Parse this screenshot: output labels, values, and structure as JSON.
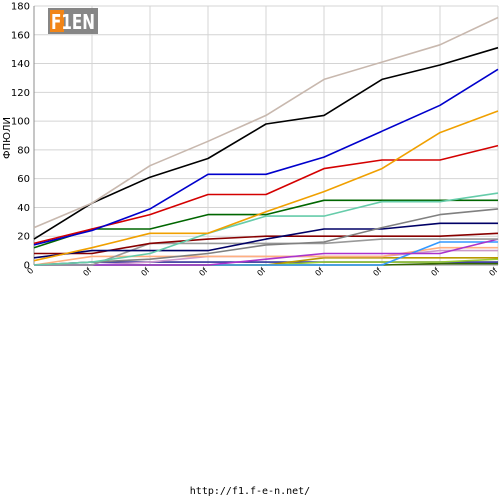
{
  "chart_data": {
    "type": "line",
    "title": "",
    "xlabel": "",
    "ylabel": "ФПЮЛИ",
    "ylim": [
      0,
      180
    ],
    "yticks": [
      0,
      20,
      40,
      60,
      80,
      100,
      120,
      140,
      160,
      180
    ],
    "categories": [
      "0",
      "0f",
      "0f",
      "0f",
      "0f",
      "0f",
      "0f",
      "0f",
      "0f"
    ],
    "grid": true,
    "legend": "none",
    "series": [
      {
        "color": "#c8b8ae",
        "values": [
          26,
          43,
          69,
          86,
          104,
          129,
          141,
          153,
          172
        ]
      },
      {
        "color": "#000000",
        "values": [
          18,
          43,
          61,
          74,
          98,
          104,
          129,
          139,
          151
        ]
      },
      {
        "color": "#0000cc",
        "values": [
          14,
          24,
          39,
          63,
          63,
          75,
          93,
          111,
          136
        ]
      },
      {
        "color": "#f0a000",
        "values": [
          3,
          12,
          22,
          22,
          37,
          51,
          67,
          92,
          107
        ]
      },
      {
        "color": "#d40000",
        "values": [
          15,
          25,
          35,
          49,
          49,
          67,
          73,
          73,
          83
        ]
      },
      {
        "color": "#66ccaa",
        "values": [
          0,
          2,
          8,
          22,
          34,
          34,
          44,
          44,
          50
        ]
      },
      {
        "color": "#006600",
        "values": [
          12,
          25,
          25,
          35,
          35,
          45,
          45,
          45,
          45
        ]
      },
      {
        "color": "#808080",
        "values": [
          0,
          2,
          4,
          8,
          14,
          16,
          26,
          35,
          39
        ]
      },
      {
        "color": "#000066",
        "values": [
          5,
          10,
          10,
          10,
          18,
          25,
          25,
          29,
          29
        ]
      },
      {
        "color": "#880000",
        "values": [
          8,
          8,
          15,
          18,
          20,
          20,
          20,
          20,
          22
        ]
      },
      {
        "color": "#999999",
        "values": [
          0,
          0,
          15,
          15,
          15,
          15,
          18,
          18,
          18
        ]
      },
      {
        "color": "#aa33cc",
        "values": [
          0,
          0,
          0,
          0,
          4,
          8,
          8,
          8,
          18
        ]
      },
      {
        "color": "#3399ff",
        "values": [
          0,
          0,
          0,
          0,
          0,
          0,
          0,
          16,
          16
        ]
      },
      {
        "color": "#ffb080",
        "values": [
          0,
          6,
          6,
          6,
          6,
          6,
          6,
          12,
          12
        ]
      },
      {
        "color": "#cc99cc",
        "values": [
          0,
          0,
          2,
          6,
          6,
          6,
          6,
          10,
          10
        ]
      },
      {
        "color": "#b89800",
        "values": [
          0,
          0,
          0,
          0,
          0,
          5,
          5,
          5,
          5
        ]
      },
      {
        "color": "#99cc33",
        "values": [
          0,
          0,
          0,
          0,
          0,
          2,
          2,
          2,
          4
        ]
      },
      {
        "color": "#333399",
        "values": [
          0,
          2,
          2,
          2,
          2,
          2,
          2,
          2,
          2
        ]
      },
      {
        "color": "#336600",
        "values": [
          0,
          0,
          0,
          0,
          0,
          0,
          0,
          1,
          1
        ]
      }
    ]
  },
  "watermark": {
    "text": "F1EN"
  },
  "footer": {
    "url": "http://f1.f-e-n.net/"
  }
}
